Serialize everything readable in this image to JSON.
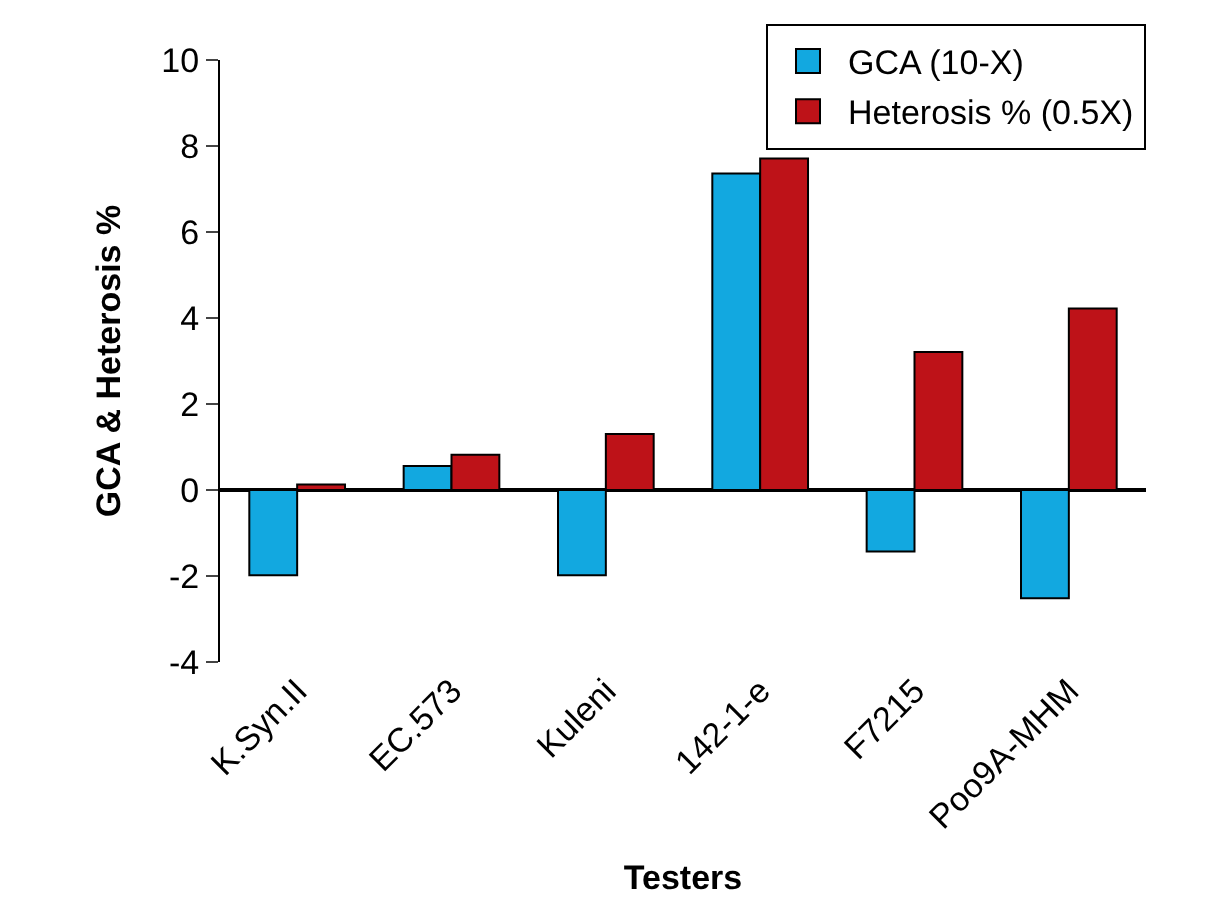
{
  "chart_data": {
    "type": "bar",
    "xlabel": "Testers",
    "ylabel": "GCA & Heterosis %",
    "categories": [
      "K.Syn.II",
      "EC.573",
      "Kuleni",
      "142-1-e",
      "F7215",
      "Poo9A-MHM"
    ],
    "series": [
      {
        "name": "GCA (10-X)",
        "color": "#12a8e0",
        "values": [
          -1.98,
          0.56,
          -1.98,
          7.36,
          -1.43,
          -2.52
        ]
      },
      {
        "name": "Heterosis % (0.5X)",
        "color": "#be1218",
        "values": [
          0.13,
          0.82,
          1.3,
          7.71,
          3.21,
          4.22
        ]
      }
    ],
    "ylim": [
      -4,
      10
    ],
    "yticks": [
      -4,
      -2,
      0,
      2,
      4,
      6,
      8,
      10
    ],
    "legend": "top right"
  }
}
